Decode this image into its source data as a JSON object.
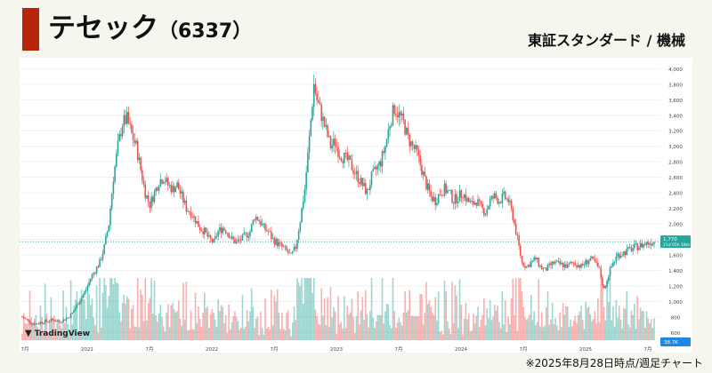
{
  "header": {
    "company_name": "テセック",
    "stock_code": "（6337）",
    "market_sector": "東証スタンダード / 機械"
  },
  "footnote": "※2025年8月28日時点/週足チャート",
  "watermark": "TradingView",
  "colors": {
    "accent": "#b5260d",
    "up": "#26a69a",
    "down": "#ef5350",
    "price_tag": "#26a69a",
    "volume_tag": "#1e88e5"
  },
  "chart_data": {
    "type": "candlestick",
    "timeframe": "weekly",
    "y_axis_ticks": [
      "4,000",
      "3,800",
      "3,600",
      "3,400",
      "3,200",
      "3,000",
      "2,800",
      "2,600",
      "2,400",
      "2,200",
      "2,000",
      "1,800",
      "1,600",
      "1,400",
      "1,200",
      "1,000",
      "800",
      "600"
    ],
    "ylim": [
      500,
      4050
    ],
    "x_axis_ticks": [
      "7月",
      "2021",
      "7月",
      "2022",
      "7月",
      "2023",
      "7月",
      "2024",
      "7月",
      "2025",
      "7月"
    ],
    "last_price_label": "1,770",
    "last_price_sub": "21d 05h 18m",
    "last_price": 1770,
    "volume_label": "38.7K",
    "close_path": [
      [
        0,
        800
      ],
      [
        3,
        760
      ],
      [
        6,
        720
      ],
      [
        9,
        710
      ],
      [
        12,
        730
      ],
      [
        15,
        740
      ],
      [
        18,
        755
      ],
      [
        21,
        760
      ],
      [
        24,
        740
      ],
      [
        27,
        760
      ],
      [
        30,
        790
      ],
      [
        33,
        850
      ],
      [
        36,
        950
      ],
      [
        39,
        1050
      ],
      [
        42,
        1150
      ],
      [
        45,
        1300
      ],
      [
        48,
        1400
      ],
      [
        51,
        1500
      ],
      [
        54,
        1700
      ],
      [
        57,
        2000
      ],
      [
        60,
        2600
      ],
      [
        63,
        3000
      ],
      [
        66,
        3300
      ],
      [
        69,
        3350
      ],
      [
        72,
        3150
      ],
      [
        75,
        3000
      ],
      [
        78,
        2700
      ],
      [
        81,
        2400
      ],
      [
        84,
        2250
      ],
      [
        87,
        2400
      ],
      [
        90,
        2550
      ],
      [
        93,
        2600
      ],
      [
        96,
        2500
      ],
      [
        99,
        2450
      ],
      [
        102,
        2500
      ],
      [
        105,
        2350
      ],
      [
        108,
        2200
      ],
      [
        111,
        2150
      ],
      [
        114,
        2050
      ],
      [
        117,
        1950
      ],
      [
        120,
        1900
      ],
      [
        123,
        1800
      ],
      [
        126,
        1760
      ],
      [
        129,
        1900
      ],
      [
        132,
        1950
      ],
      [
        135,
        1900
      ],
      [
        138,
        1800
      ],
      [
        141,
        1760
      ],
      [
        144,
        1800
      ],
      [
        147,
        1850
      ],
      [
        150,
        1900
      ],
      [
        153,
        2100
      ],
      [
        156,
        2050
      ],
      [
        159,
        1950
      ],
      [
        162,
        1900
      ],
      [
        165,
        1800
      ],
      [
        168,
        1750
      ],
      [
        171,
        1700
      ],
      [
        174,
        1650
      ],
      [
        177,
        1580
      ],
      [
        180,
        1700
      ],
      [
        183,
        2050
      ],
      [
        186,
        2450
      ],
      [
        189,
        3100
      ],
      [
        192,
        3800
      ],
      [
        194,
        3600
      ],
      [
        197,
        3400
      ],
      [
        200,
        3200
      ],
      [
        203,
        3000
      ],
      [
        206,
        3050
      ],
      [
        209,
        2900
      ],
      [
        212,
        2850
      ],
      [
        215,
        2800
      ],
      [
        218,
        2700
      ],
      [
        221,
        2600
      ],
      [
        224,
        2500
      ],
      [
        227,
        2400
      ],
      [
        230,
        2600
      ],
      [
        233,
        2700
      ],
      [
        236,
        2800
      ],
      [
        239,
        3000
      ],
      [
        242,
        3300
      ],
      [
        245,
        3500
      ],
      [
        248,
        3400
      ],
      [
        251,
        3300
      ],
      [
        254,
        3100
      ],
      [
        257,
        3000
      ],
      [
        260,
        2900
      ],
      [
        263,
        2700
      ],
      [
        266,
        2500
      ],
      [
        269,
        2350
      ],
      [
        272,
        2300
      ],
      [
        275,
        2400
      ],
      [
        278,
        2450
      ],
      [
        281,
        2400
      ],
      [
        284,
        2300
      ],
      [
        287,
        2350
      ],
      [
        290,
        2400
      ],
      [
        293,
        2300
      ],
      [
        296,
        2250
      ],
      [
        299,
        2300
      ],
      [
        302,
        2200
      ],
      [
        305,
        2150
      ],
      [
        308,
        2300
      ],
      [
        311,
        2350
      ],
      [
        314,
        2300
      ],
      [
        317,
        2350
      ],
      [
        320,
        2300
      ],
      [
        323,
        2100
      ],
      [
        326,
        1800
      ],
      [
        329,
        1500
      ],
      [
        332,
        1450
      ],
      [
        335,
        1500
      ],
      [
        338,
        1550
      ],
      [
        341,
        1450
      ],
      [
        344,
        1400
      ],
      [
        347,
        1450
      ],
      [
        350,
        1500
      ],
      [
        353,
        1480
      ],
      [
        356,
        1470
      ],
      [
        359,
        1450
      ],
      [
        362,
        1500
      ],
      [
        365,
        1480
      ],
      [
        368,
        1450
      ],
      [
        371,
        1500
      ],
      [
        374,
        1550
      ],
      [
        377,
        1500
      ],
      [
        380,
        1400
      ],
      [
        383,
        1150
      ],
      [
        386,
        1350
      ],
      [
        389,
        1500
      ],
      [
        392,
        1600
      ],
      [
        395,
        1620
      ],
      [
        398,
        1650
      ],
      [
        401,
        1680
      ],
      [
        404,
        1700
      ],
      [
        407,
        1720
      ],
      [
        410,
        1740
      ],
      [
        413,
        1760
      ],
      [
        416,
        1770
      ]
    ]
  }
}
